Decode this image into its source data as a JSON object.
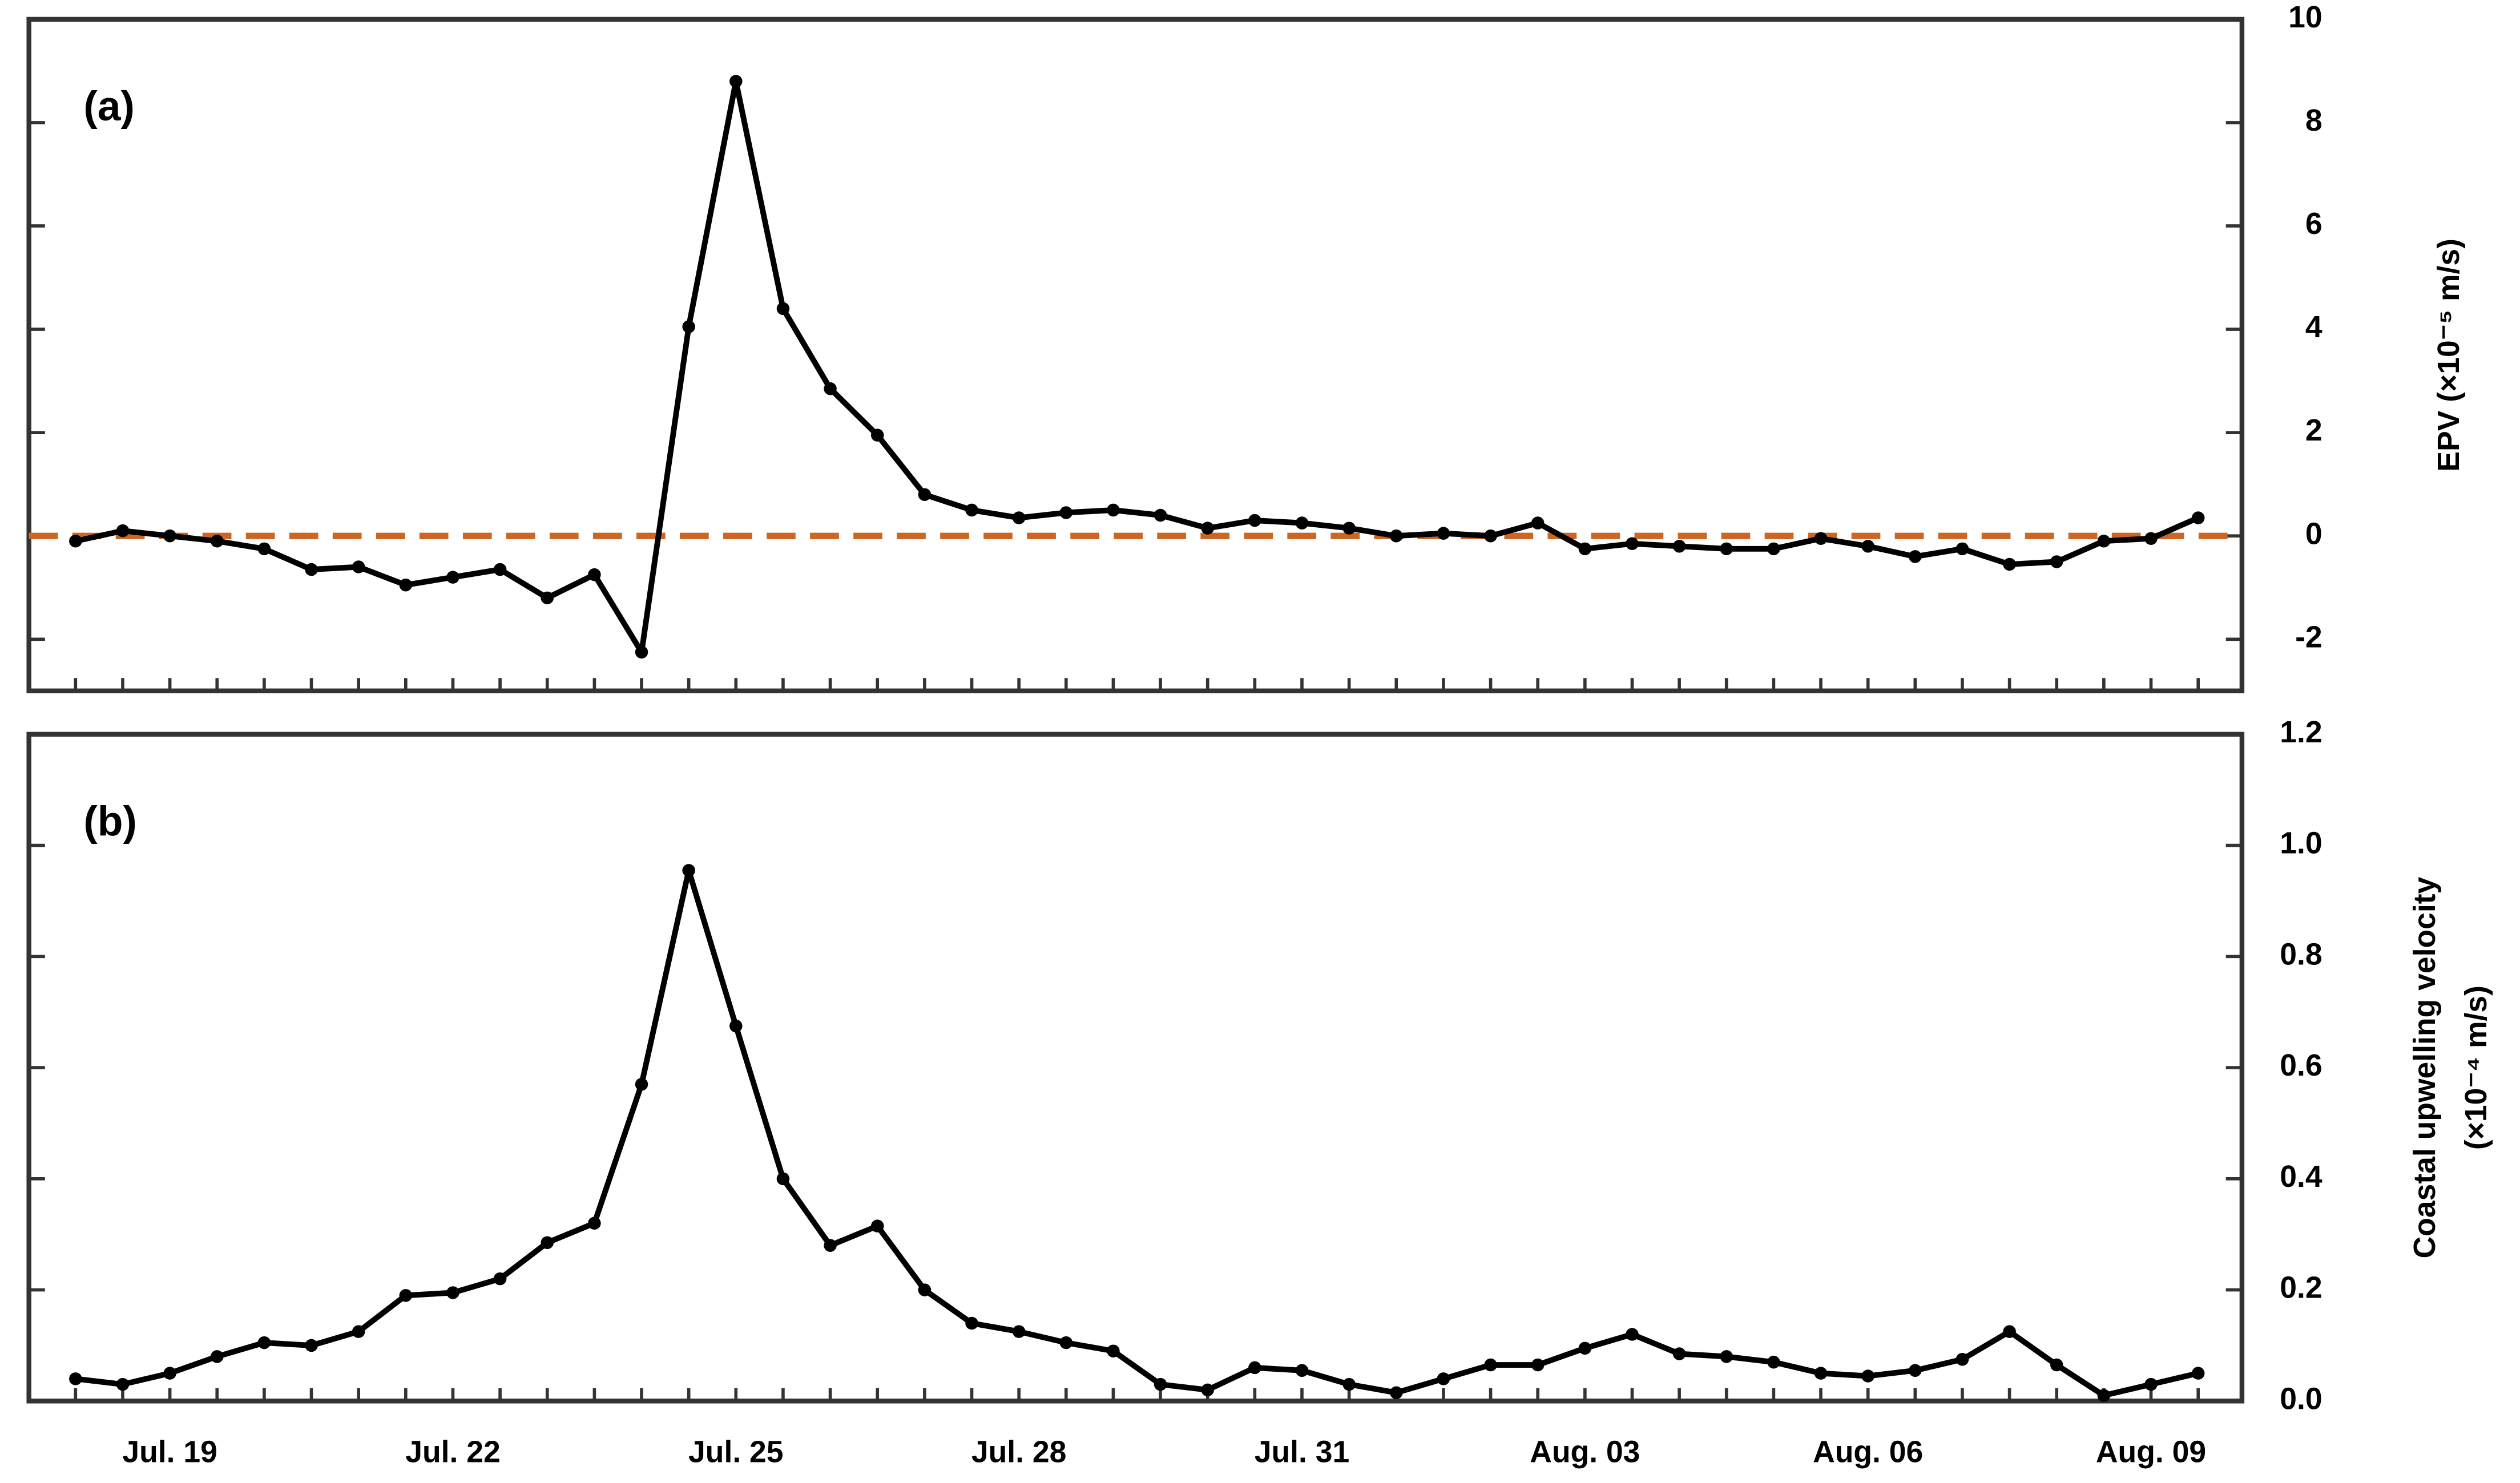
{
  "chart_data": [
    {
      "type": "line",
      "panel_label": "(a)",
      "ylabel": [
        "EPV (×10⁻⁵ m/s)"
      ],
      "categories": [
        null,
        null,
        null,
        null,
        null,
        null,
        null,
        null,
        null,
        null,
        null,
        null,
        null,
        null,
        null,
        null,
        null,
        null,
        null,
        null,
        null,
        null,
        null,
        null,
        null,
        null,
        null,
        null,
        null,
        null,
        null,
        null,
        null,
        null,
        null,
        null,
        null,
        null,
        null,
        null,
        null,
        null,
        null,
        null,
        null,
        null
      ],
      "series": [
        {
          "color": "#000000",
          "values": [
            -0.1,
            0.1,
            0.0,
            -0.1,
            -0.25,
            -0.65,
            -0.6,
            -0.95,
            -0.8,
            -0.65,
            -1.2,
            -0.75,
            -2.25,
            4.05,
            8.8,
            4.4,
            2.85,
            1.95,
            0.8,
            0.5,
            0.35,
            0.45,
            0.5,
            0.4,
            0.15,
            0.3,
            0.25,
            0.15,
            0,
            0.05,
            0,
            0.25,
            -0.25,
            -0.15,
            -0.2,
            -0.25,
            -0.25,
            -0.05,
            -0.2,
            -0.4,
            -0.25,
            -0.55,
            -0.5,
            -0.1,
            -0.05,
            0.35
          ]
        }
      ],
      "ylim": [
        -3,
        10
      ],
      "yticks": [
        -2,
        0,
        2,
        4,
        6,
        8,
        10
      ],
      "reference_line": {
        "y": 0,
        "color": "#cc6622"
      }
    },
    {
      "type": "line",
      "panel_label": "(b)",
      "ylabel": [
        "Coastal upwelling velocity",
        "(×10⁻⁴ m/s)"
      ],
      "categories": [
        null,
        null,
        "Jul. 19",
        null,
        null,
        null,
        null,
        null,
        "Jul. 22",
        null,
        null,
        null,
        null,
        null,
        "Jul. 25",
        null,
        null,
        null,
        null,
        null,
        "Jul. 28",
        null,
        null,
        null,
        null,
        null,
        "Jul. 31",
        null,
        null,
        null,
        null,
        null,
        "Aug. 03",
        null,
        null,
        null,
        null,
        null,
        "Aug. 06",
        null,
        null,
        null,
        null,
        null,
        "Aug. 09",
        null
      ],
      "series": [
        {
          "color": "#000000",
          "values": [
            0.04,
            0.03,
            0.05,
            0.08,
            0.105,
            0.1,
            0.125,
            0.19,
            0.195,
            0.22,
            0.285,
            0.32,
            0.57,
            0.955,
            0.675,
            0.4,
            0.28,
            0.315,
            0.2,
            0.14,
            0.125,
            0.105,
            0.09,
            0.03,
            0.02,
            0.06,
            0.055,
            0.03,
            0.015,
            0.04,
            0.065,
            0.065,
            0.095,
            0.12,
            0.085,
            0.08,
            0.07,
            0.05,
            0.045,
            0.055,
            0.075,
            0.125,
            0.065,
            0.01,
            0.03,
            0.05
          ]
        }
      ],
      "ylim": [
        0,
        1.2
      ],
      "yticks": [
        {
          "value": 0,
          "label": "0.0"
        },
        {
          "value": 0.2,
          "label": "0.2"
        },
        {
          "value": 0.4,
          "label": "0.4"
        },
        {
          "value": 0.6,
          "label": "0.6"
        },
        {
          "value": 0.8,
          "label": "0.8"
        },
        {
          "value": 1.0,
          "label": "1.0"
        },
        {
          "value": 1.2,
          "label": "1.2"
        }
      ]
    }
  ]
}
